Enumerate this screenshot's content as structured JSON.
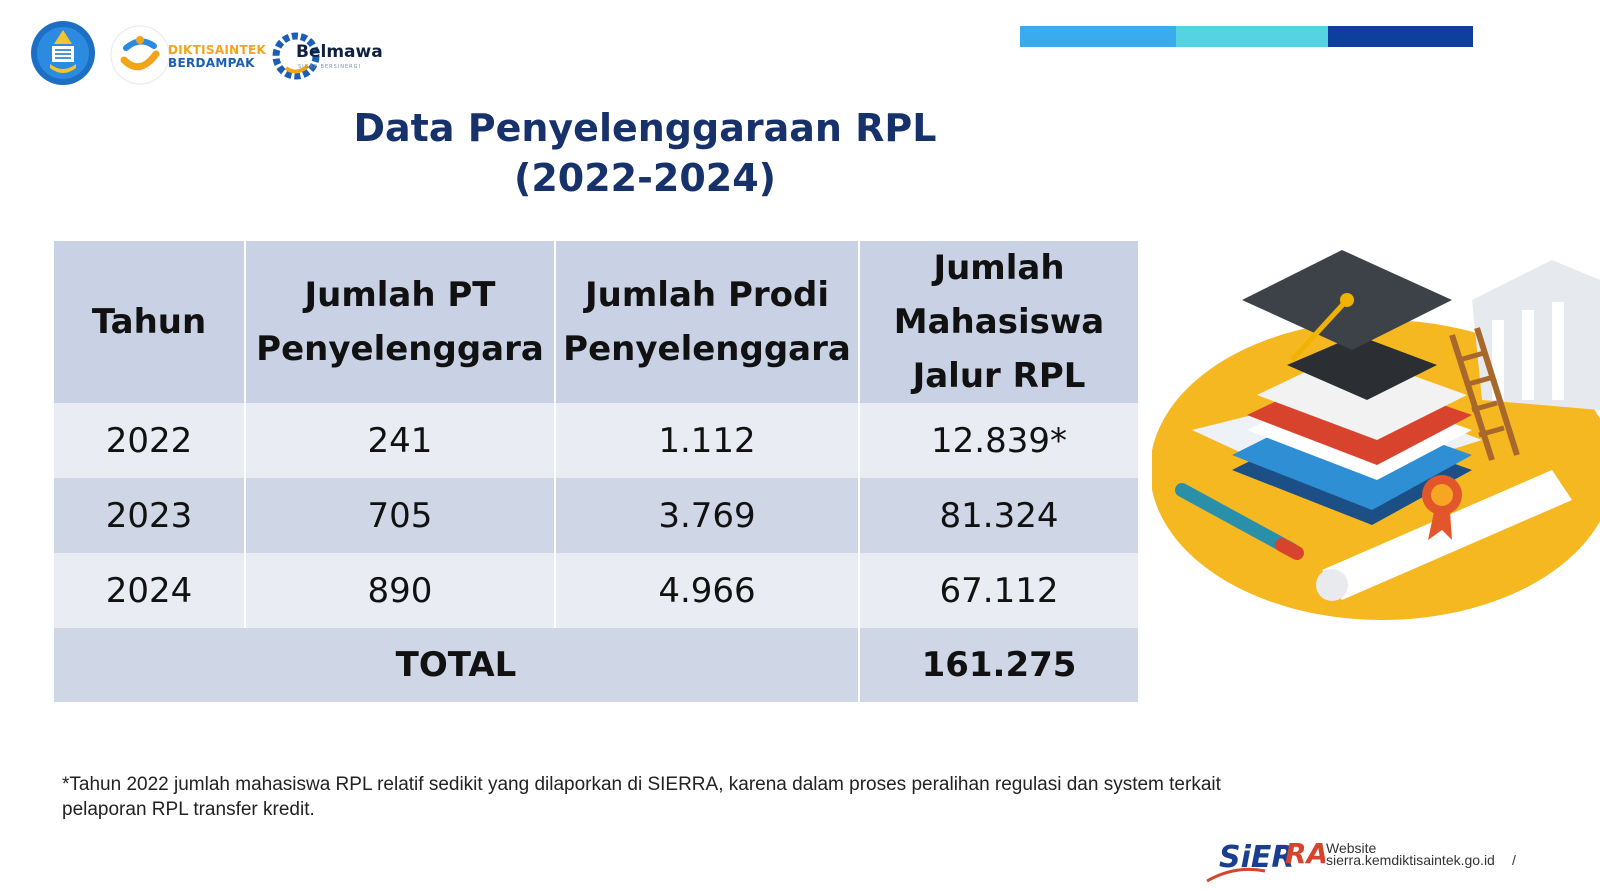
{
  "header": {
    "logos": [
      {
        "name": "kemdikbud-logo"
      },
      {
        "name": "diktisaintek-berdampak-logo",
        "line1": "DIKTISAINTEK",
        "line2": "BERDAMPAK"
      },
      {
        "name": "belmawa-logo",
        "text": "Belmawa",
        "sub": "SIGAP BERSINERGI"
      }
    ],
    "accent_bars": [
      "#3aabed",
      "#55d3e3",
      "#0f3f9e"
    ]
  },
  "title": {
    "line1": "Data Penyelenggaraan RPL",
    "line2": "(2022-2024)",
    "color": "#17316a"
  },
  "table": {
    "headers": [
      "Tahun",
      "Jumlah PT Penyelenggara",
      "Jumlah Prodi Penyelenggara",
      "Jumlah Mahasiswa Jalur RPL"
    ],
    "rows": [
      [
        "2022",
        "241",
        "1.112",
        "12.839*"
      ],
      [
        "2023",
        "705",
        "3.769",
        "81.324"
      ],
      [
        "2024",
        "890",
        "4.966",
        "67.112"
      ]
    ],
    "total_label": "TOTAL",
    "total_value": "161.275"
  },
  "footnote": "*Tahun 2022 jumlah mahasiswa RPL relatif sedikit yang dilaporkan di SIERRA, karena dalam proses peralihan regulasi dan system terkait pelaporan RPL transfer kredit.",
  "footer": {
    "logo_text": "SiERRA",
    "website_label": "Website",
    "website_url": "sierra.kemdiktisaintek.go.id",
    "page_marker": "/"
  },
  "illustration": {
    "name": "graduation-books-illustration"
  }
}
